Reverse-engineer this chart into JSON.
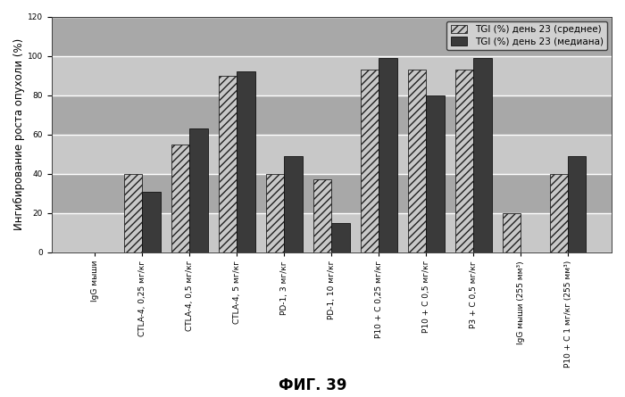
{
  "categories": [
    "IgG мыши",
    "CTLA-4, 0,25 мг/кг",
    "CTLA-4, 0,5 мг/кг",
    "CTLA-4, 5 мг/кг",
    "PD-1, 3 мг/кг",
    "PD-1, 10 мг/кг",
    "P10 + С 0,25 мг/кг",
    "P10 + С 0,5 мг/кг",
    "P3 + С 0,5 мг/кг",
    "IgG мыши (255 мм³)",
    "P10 + С 1 мг/кг (255 мм³)"
  ],
  "mean_values": [
    0,
    40,
    55,
    90,
    40,
    37,
    93,
    93,
    93,
    20,
    40
  ],
  "median_values": [
    0,
    31,
    63,
    92,
    49,
    15,
    99,
    80,
    99,
    0,
    49
  ],
  "color_mean": "#c8c8c8",
  "color_median": "#3a3a3a",
  "ylabel": "Ингибирование роста опухоли (%)",
  "ylim": [
    0,
    120
  ],
  "yticks": [
    0,
    20,
    40,
    60,
    80,
    100,
    120
  ],
  "legend_mean": "TGI (%) день 23 (среднее)",
  "legend_median": "TGI (%) день 23 (медиана)",
  "fig_label": "ФИГ. 39",
  "bar_width": 0.38,
  "bg_light": "#c8c8c8",
  "bg_dark": "#a8a8a8",
  "grid_color": "#ffffff",
  "legend_fontsize": 7.5,
  "tick_fontsize": 6.5,
  "ylabel_fontsize": 8.5,
  "figlabel_fontsize": 12
}
